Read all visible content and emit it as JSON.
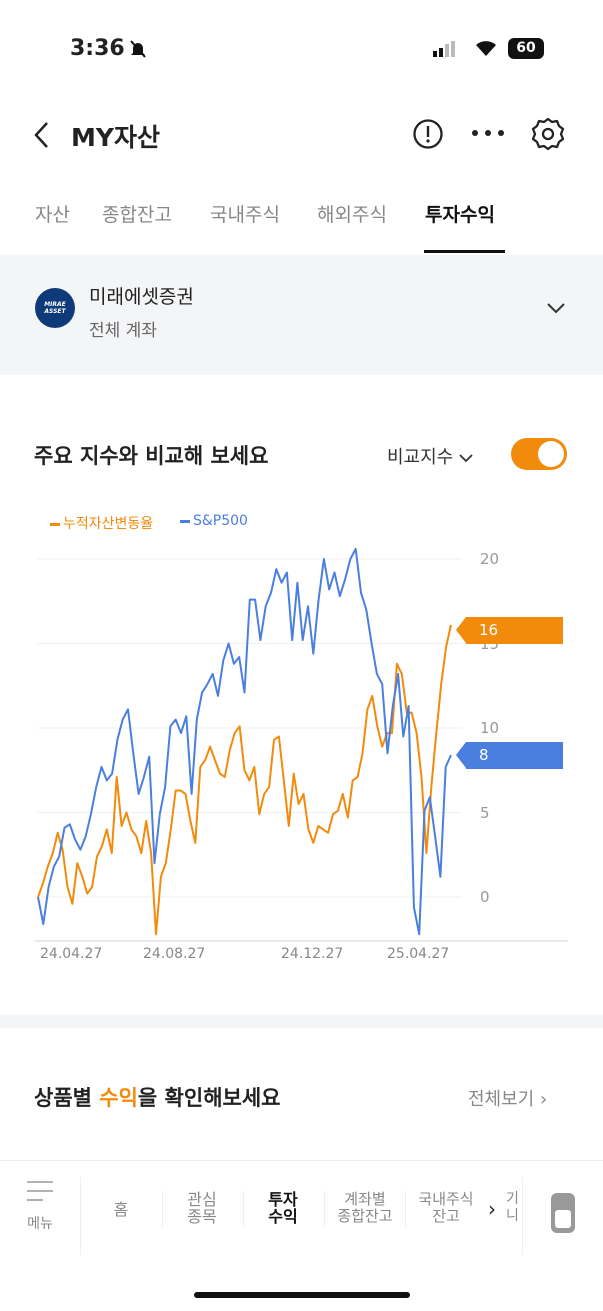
{
  "status": {
    "time": "3:36",
    "battery": "60"
  },
  "header": {
    "title": "MY자산"
  },
  "tabs": [
    {
      "label": "자산"
    },
    {
      "label": "종합잔고"
    },
    {
      "label": "국내주식"
    },
    {
      "label": "해외주식"
    },
    {
      "label": "투자수익",
      "active": true
    }
  ],
  "account": {
    "logo_text": "MIRAE ASSET",
    "broker": "미래에셋증권",
    "scope": "전체 계좌"
  },
  "compare": {
    "title": "주요 지수와 비교해 보세요",
    "dropdown_label": "비교지수",
    "toggle_on": true
  },
  "products": {
    "title_pre": "상품별 ",
    "title_highlight": "수익",
    "title_post": "을 확인해보세요",
    "view_all": "전체보기"
  },
  "colors": {
    "accent": "#f28a0c",
    "sp500": "#4a7fe0"
  },
  "chart_data": {
    "type": "line",
    "legend_position": "top-left",
    "grid": true,
    "ylim": [
      -2.6,
      20.6
    ],
    "y_ticks": [
      "0",
      "5",
      "10",
      "15",
      "20"
    ],
    "x_tick_labels": [
      "24.04.27",
      "24.08.27",
      "24.12.27",
      "25.04.27"
    ],
    "series": [
      {
        "name": "누적자산변동율",
        "color": "#f28a0c",
        "last_label": "16",
        "values": [
          0,
          0.8,
          1.8,
          2.6,
          3.8,
          2.8,
          0.6,
          -0.4,
          2.0,
          1.2,
          0.2,
          0.6,
          2.4,
          3.0,
          4.0,
          2.6,
          7.1,
          4.2,
          5.0,
          4.0,
          3.6,
          2.6,
          4.5,
          2.6,
          -2.2,
          1.2,
          2.0,
          4.0,
          6.3,
          6.3,
          6.1,
          4.5,
          3.2,
          7.7,
          8.1,
          8.9,
          8.1,
          7.3,
          7.1,
          8.7,
          9.7,
          10.1,
          7.5,
          6.9,
          7.7,
          4.9,
          6.1,
          6.5,
          9.3,
          9.5,
          6.9,
          4.2,
          7.3,
          5.5,
          6.1,
          4.0,
          3.2,
          4.2,
          4.0,
          3.8,
          4.9,
          5.1,
          6.1,
          4.7,
          6.9,
          7.1,
          8.5,
          11.1,
          11.9,
          10.1,
          8.9,
          9.7,
          9.7,
          13.8,
          13.2,
          10.9,
          10.9,
          9.7,
          7.1,
          2.6,
          6.5,
          9.7,
          12.6,
          14.8,
          16.1
        ]
      },
      {
        "name": "S&P500",
        "color": "#4a7fe0",
        "last_label": "8",
        "values": [
          0,
          -1.6,
          0.6,
          1.8,
          2.4,
          4.1,
          4.3,
          3.4,
          2.8,
          3.6,
          4.9,
          6.5,
          7.7,
          6.9,
          7.3,
          9.3,
          10.5,
          11.1,
          8.5,
          6.1,
          7.1,
          8.3,
          2.0,
          4.9,
          6.5,
          10.1,
          10.5,
          9.7,
          10.7,
          6.1,
          10.5,
          12.1,
          12.6,
          13.2,
          11.9,
          14.0,
          15.0,
          13.8,
          14.2,
          12.1,
          17.6,
          17.6,
          15.2,
          17.2,
          18.0,
          19.4,
          18.6,
          19.2,
          15.2,
          18.6,
          15.2,
          17.2,
          14.4,
          17.6,
          20.0,
          18.2,
          19.2,
          17.8,
          18.8,
          20.0,
          20.6,
          18.0,
          17.0,
          15.0,
          13.2,
          12.6,
          8.5,
          11.3,
          13.2,
          9.5,
          11.3,
          -0.6,
          -2.2,
          5.1,
          5.9,
          3.6,
          1.2,
          7.7,
          8.4
        ]
      }
    ]
  },
  "bottom_nav": {
    "menu": "메뉴",
    "items": [
      {
        "label": "홈"
      },
      {
        "label": "관심\n종목"
      },
      {
        "label": "투자\n수익",
        "active": true
      },
      {
        "label": "계좌별\n종합잔고"
      },
      {
        "label": "국내주식\n잔고"
      },
      {
        "label": "기\n니"
      }
    ]
  }
}
